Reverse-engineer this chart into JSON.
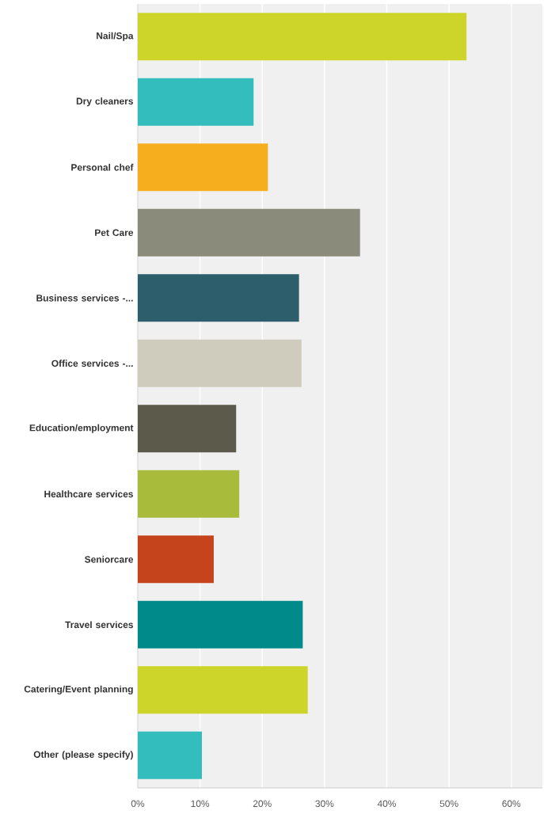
{
  "chart_data": {
    "type": "bar",
    "orientation": "horizontal",
    "categories": [
      "Nail/Spa",
      "Dry cleaners",
      "Personal chef",
      "Pet Care",
      "Business services -...",
      "Office services -...",
      "Education/employment",
      "Healthcare services",
      "Seniorcare",
      "Travel services",
      "Catering/Event planning",
      "Other (please specify)"
    ],
    "values": [
      52.8,
      18.6,
      20.9,
      35.7,
      25.9,
      26.3,
      15.8,
      16.3,
      12.2,
      26.5,
      27.3,
      10.3
    ],
    "colors": [
      "#cdd52a",
      "#33bdbd",
      "#f7ae1e",
      "#8a8b7a",
      "#2d5e6b",
      "#cfccbd",
      "#5c5a4a",
      "#a8bb3a",
      "#c6441c",
      "#008b8a",
      "#cdd52a",
      "#33bdbd"
    ],
    "xlim": [
      0,
      65
    ],
    "xticks": [
      {
        "value": 0,
        "label": "0%"
      },
      {
        "value": 10,
        "label": "10%"
      },
      {
        "value": 20,
        "label": "20%"
      },
      {
        "value": 30,
        "label": "30%"
      },
      {
        "value": 40,
        "label": "40%"
      },
      {
        "value": 50,
        "label": "50%"
      },
      {
        "value": 60,
        "label": "60%"
      }
    ],
    "grid": "x"
  }
}
